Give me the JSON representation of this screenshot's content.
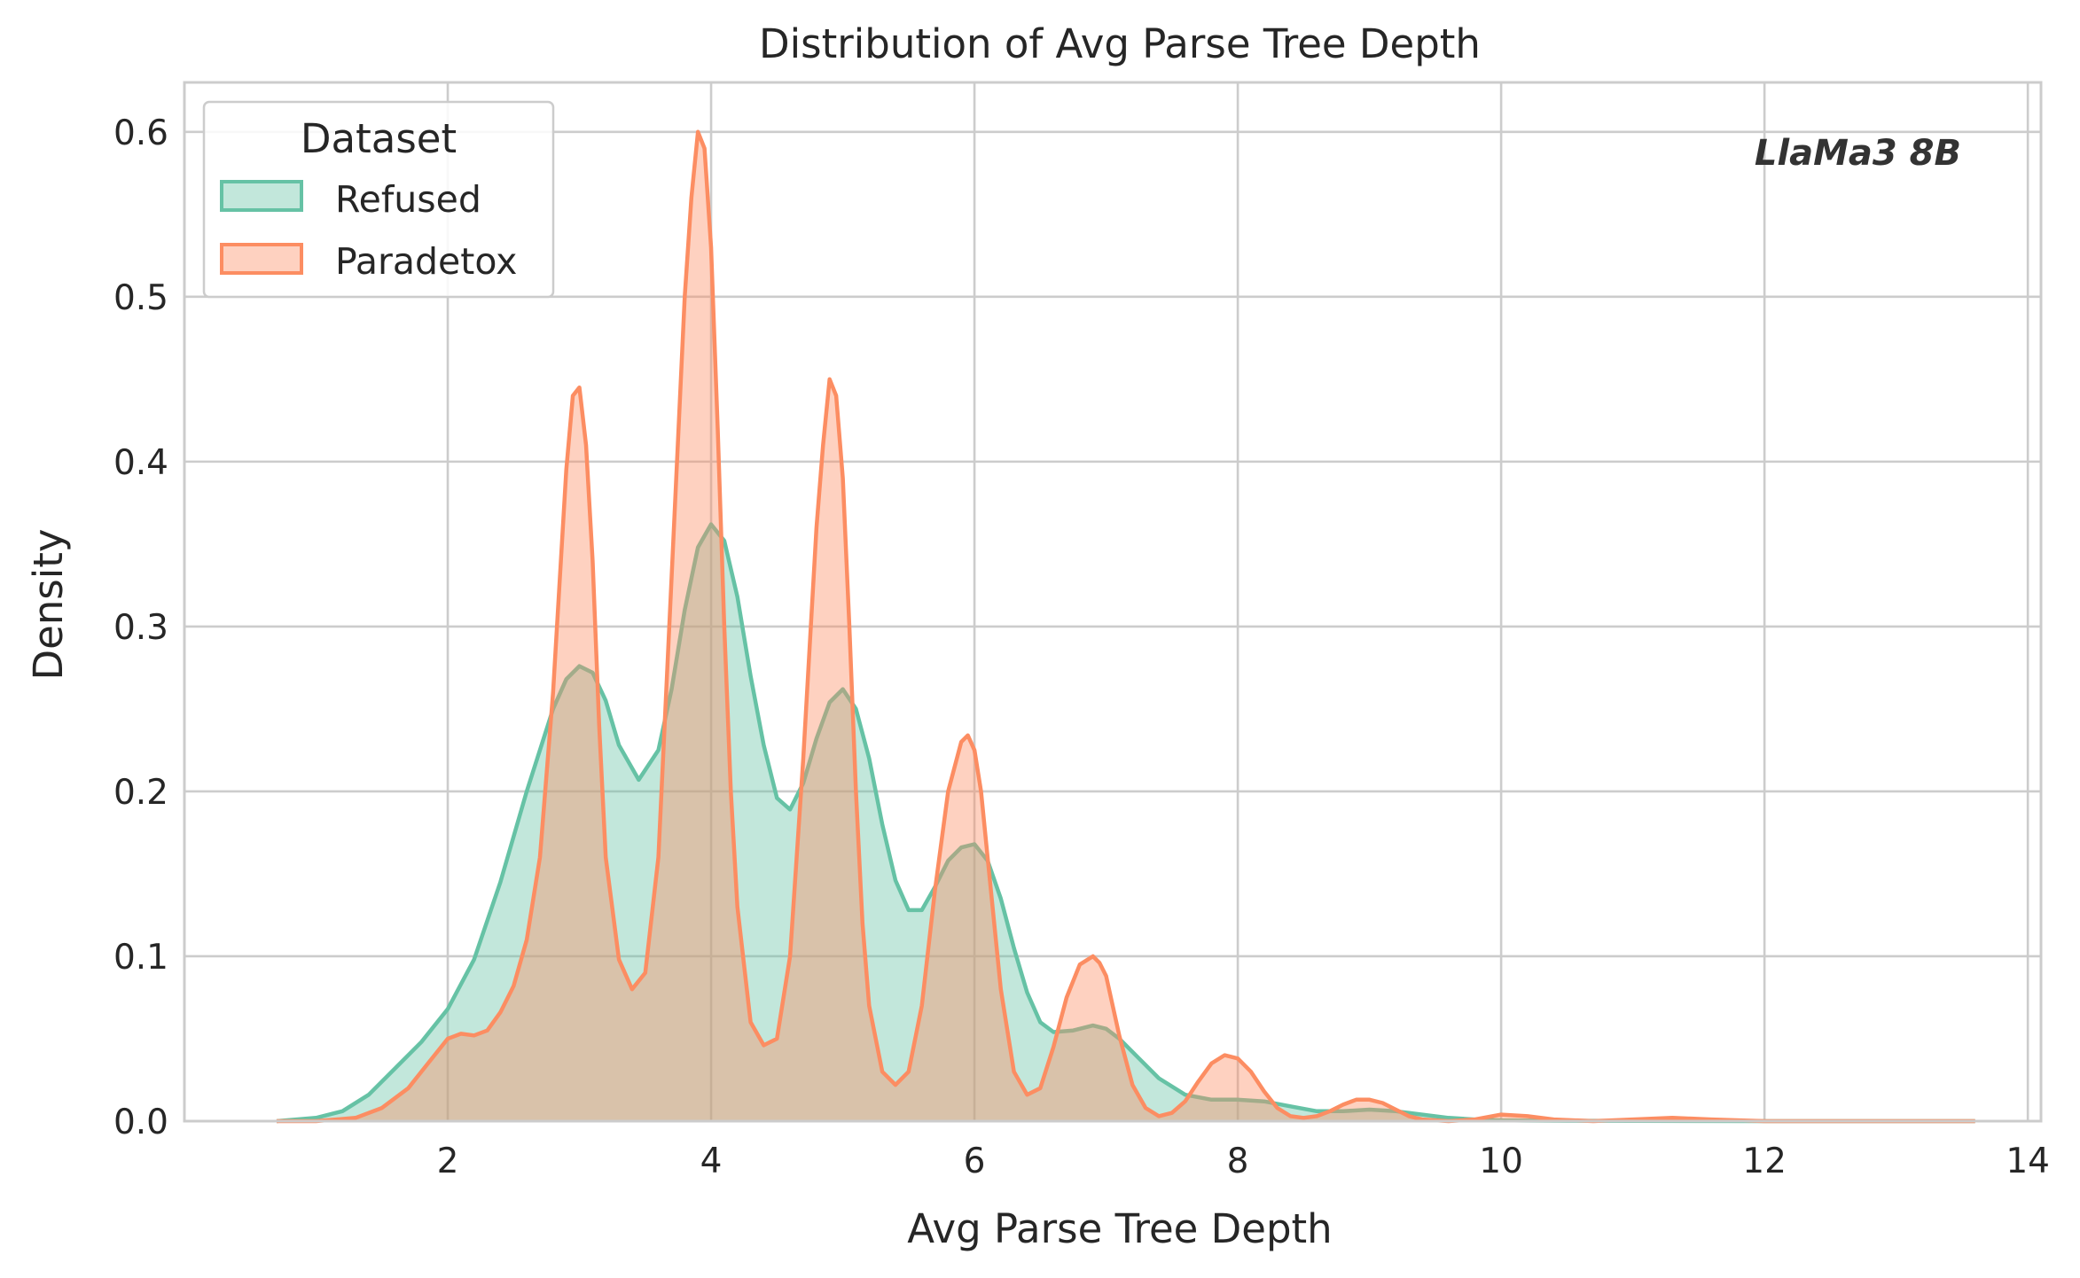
{
  "chart_data": {
    "type": "area",
    "title": "Distribution of Avg Parse Tree Depth",
    "xlabel": "Avg Parse Tree Depth",
    "ylabel": "Density",
    "xlim": [
      0.0,
      14.1
    ],
    "ylim": [
      0,
      0.63
    ],
    "xticks": [
      2,
      4,
      6,
      8,
      10,
      12,
      14
    ],
    "yticks": [
      0.0,
      0.1,
      0.2,
      0.3,
      0.4,
      0.5,
      0.6
    ],
    "xtick_labels": [
      "2",
      "4",
      "6",
      "8",
      "10",
      "12",
      "14"
    ],
    "ytick_labels": [
      "0.0",
      "0.1",
      "0.2",
      "0.3",
      "0.4",
      "0.5",
      "0.6"
    ],
    "grid": true,
    "annotation": "LlaMa3 8B",
    "legend": {
      "title": "Dataset",
      "placement": "top-left",
      "entries": [
        "Refused",
        "Paradetox"
      ]
    },
    "series": [
      {
        "name": "Refused",
        "color": "#66c2a5",
        "x": [
          0.7,
          1.0,
          1.2,
          1.4,
          1.6,
          1.8,
          2.0,
          2.2,
          2.4,
          2.6,
          2.8,
          2.9,
          3.0,
          3.1,
          3.2,
          3.3,
          3.45,
          3.6,
          3.7,
          3.8,
          3.9,
          4.0,
          4.1,
          4.2,
          4.3,
          4.4,
          4.5,
          4.6,
          4.7,
          4.8,
          4.9,
          5.0,
          5.1,
          5.2,
          5.3,
          5.4,
          5.5,
          5.6,
          5.7,
          5.8,
          5.9,
          6.0,
          6.1,
          6.2,
          6.3,
          6.4,
          6.5,
          6.6,
          6.75,
          6.9,
          7.0,
          7.1,
          7.25,
          7.4,
          7.6,
          7.8,
          8.0,
          8.2,
          8.4,
          8.6,
          8.8,
          9.0,
          9.2,
          9.4,
          9.6,
          9.8,
          10.0,
          10.2,
          10.5,
          11.0,
          12.0,
          13.0,
          13.6
        ],
        "y": [
          0.0,
          0.002,
          0.006,
          0.016,
          0.032,
          0.048,
          0.068,
          0.098,
          0.145,
          0.2,
          0.25,
          0.268,
          0.276,
          0.272,
          0.255,
          0.228,
          0.207,
          0.225,
          0.262,
          0.31,
          0.348,
          0.362,
          0.352,
          0.318,
          0.27,
          0.228,
          0.196,
          0.189,
          0.205,
          0.232,
          0.254,
          0.262,
          0.25,
          0.22,
          0.18,
          0.146,
          0.128,
          0.128,
          0.142,
          0.158,
          0.166,
          0.168,
          0.158,
          0.135,
          0.105,
          0.078,
          0.06,
          0.054,
          0.055,
          0.058,
          0.056,
          0.05,
          0.038,
          0.026,
          0.016,
          0.013,
          0.013,
          0.012,
          0.009,
          0.006,
          0.006,
          0.007,
          0.006,
          0.004,
          0.002,
          0.001,
          0.0005,
          0.0003,
          0.0002,
          0.0001,
          0.0,
          0.0,
          0.0
        ]
      },
      {
        "name": "Paradetox",
        "color": "#fc8d62",
        "x": [
          0.7,
          1.0,
          1.3,
          1.5,
          1.7,
          1.85,
          2.0,
          2.1,
          2.2,
          2.3,
          2.4,
          2.5,
          2.6,
          2.7,
          2.8,
          2.9,
          2.95,
          3.0,
          3.05,
          3.1,
          3.15,
          3.2,
          3.3,
          3.4,
          3.5,
          3.6,
          3.7,
          3.8,
          3.85,
          3.9,
          3.95,
          4.0,
          4.05,
          4.1,
          4.15,
          4.2,
          4.3,
          4.4,
          4.5,
          4.6,
          4.7,
          4.8,
          4.85,
          4.9,
          4.95,
          5.0,
          5.05,
          5.1,
          5.15,
          5.2,
          5.3,
          5.4,
          5.5,
          5.6,
          5.7,
          5.8,
          5.9,
          5.95,
          6.0,
          6.05,
          6.1,
          6.2,
          6.3,
          6.4,
          6.5,
          6.6,
          6.7,
          6.8,
          6.9,
          6.95,
          7.0,
          7.05,
          7.1,
          7.2,
          7.3,
          7.4,
          7.5,
          7.6,
          7.7,
          7.8,
          7.9,
          8.0,
          8.1,
          8.2,
          8.3,
          8.4,
          8.5,
          8.6,
          8.7,
          8.8,
          8.9,
          9.0,
          9.1,
          9.2,
          9.3,
          9.4,
          9.6,
          9.8,
          10.0,
          10.2,
          10.4,
          10.7,
          11.0,
          11.3,
          11.6,
          12.0,
          13.0,
          13.6
        ],
        "y": [
          0.0,
          0.0,
          0.002,
          0.008,
          0.02,
          0.035,
          0.05,
          0.053,
          0.052,
          0.055,
          0.066,
          0.082,
          0.11,
          0.16,
          0.26,
          0.395,
          0.44,
          0.445,
          0.41,
          0.34,
          0.24,
          0.16,
          0.098,
          0.08,
          0.09,
          0.16,
          0.33,
          0.5,
          0.56,
          0.6,
          0.59,
          0.53,
          0.42,
          0.3,
          0.2,
          0.13,
          0.06,
          0.046,
          0.05,
          0.1,
          0.22,
          0.36,
          0.41,
          0.45,
          0.44,
          0.39,
          0.3,
          0.2,
          0.12,
          0.07,
          0.03,
          0.022,
          0.03,
          0.07,
          0.14,
          0.2,
          0.23,
          0.234,
          0.225,
          0.2,
          0.16,
          0.08,
          0.03,
          0.016,
          0.02,
          0.045,
          0.075,
          0.095,
          0.1,
          0.096,
          0.088,
          0.07,
          0.052,
          0.022,
          0.008,
          0.003,
          0.005,
          0.012,
          0.024,
          0.035,
          0.04,
          0.038,
          0.03,
          0.018,
          0.008,
          0.003,
          0.002,
          0.003,
          0.006,
          0.01,
          0.013,
          0.013,
          0.011,
          0.007,
          0.003,
          0.001,
          0.0,
          0.001,
          0.004,
          0.003,
          0.001,
          0.0,
          0.001,
          0.002,
          0.001,
          0.0,
          0.0,
          0.0
        ]
      }
    ]
  }
}
